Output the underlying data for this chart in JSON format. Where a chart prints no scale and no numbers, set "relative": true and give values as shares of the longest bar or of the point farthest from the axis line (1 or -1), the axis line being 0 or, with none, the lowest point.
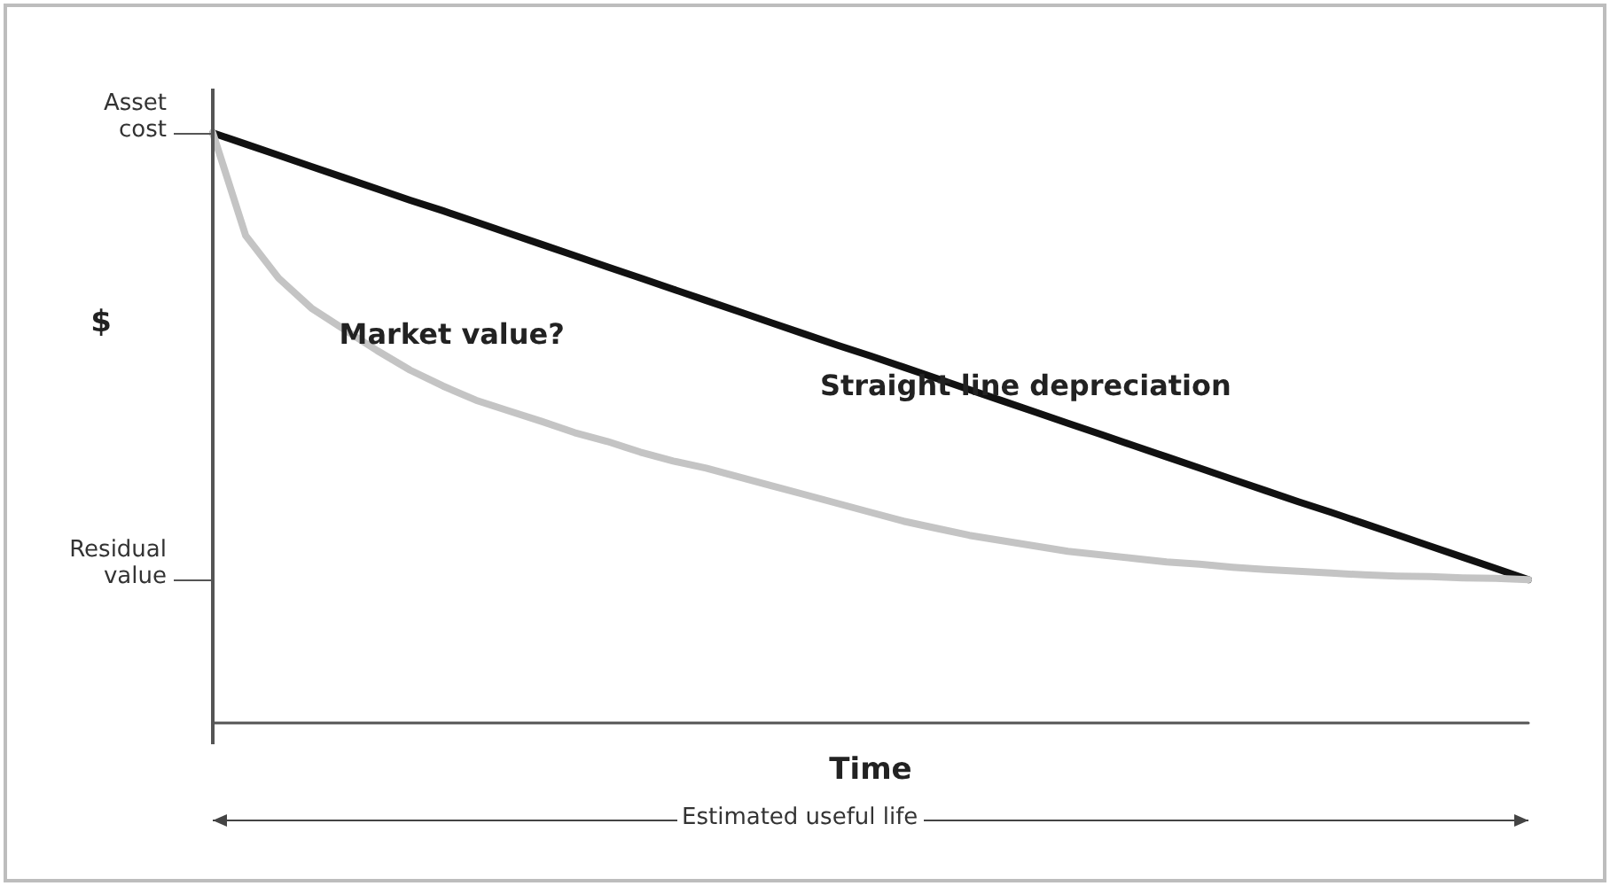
{
  "chart_data": {
    "type": "line",
    "relative": true,
    "xlabel": "Time",
    "ylabel": "$",
    "marker": "none",
    "line_style": "solid",
    "categories": [
      null,
      null,
      null,
      null,
      null,
      null,
      null,
      null,
      null,
      null,
      null,
      null,
      null,
      null,
      null,
      null,
      null,
      null,
      null,
      null,
      null,
      null,
      null,
      null,
      null,
      null,
      null,
      null,
      null,
      null,
      null,
      null,
      null,
      null,
      null,
      null,
      null,
      null,
      null,
      null,
      null
    ],
    "series": [
      {
        "name": "Straight line depreciation",
        "color": "#111111",
        "values": [
          1.0,
          0.981,
          0.962,
          0.943,
          0.924,
          0.905,
          0.886,
          0.868,
          0.849,
          0.83,
          0.811,
          0.792,
          0.773,
          0.754,
          0.735,
          0.716,
          0.697,
          0.678,
          0.659,
          0.64,
          0.622,
          0.603,
          0.584,
          0.565,
          0.546,
          0.527,
          0.508,
          0.489,
          0.47,
          0.451,
          0.432,
          0.413,
          0.394,
          0.375,
          0.357,
          0.338,
          0.319,
          0.3,
          0.281,
          0.262,
          0.243
        ]
      },
      {
        "name": "Market value?",
        "color": "#c4c4c4",
        "values": [
          1.0,
          0.826,
          0.754,
          0.703,
          0.667,
          0.631,
          0.598,
          0.571,
          0.547,
          0.529,
          0.511,
          0.492,
          0.477,
          0.459,
          0.444,
          0.432,
          0.417,
          0.402,
          0.387,
          0.372,
          0.357,
          0.342,
          0.33,
          0.318,
          0.309,
          0.3,
          0.291,
          0.285,
          0.279,
          0.273,
          0.269,
          0.264,
          0.26,
          0.257,
          0.254,
          0.251,
          0.249,
          0.248,
          0.246,
          0.245,
          0.243
        ]
      }
    ],
    "annotations": [
      "Asset cost",
      "Residual value",
      "Estimated useful life"
    ]
  }
}
